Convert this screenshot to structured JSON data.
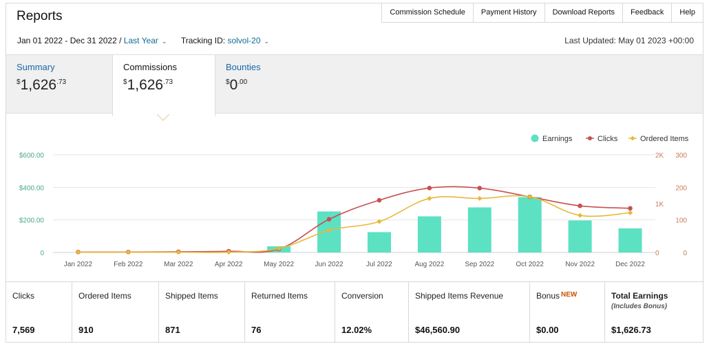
{
  "header": {
    "title": "Reports",
    "nav": [
      "Commission Schedule",
      "Payment History",
      "Download Reports",
      "Feedback",
      "Help"
    ]
  },
  "filters": {
    "date_range": "Jan 01 2022 - Dec 31 2022",
    "separator": "/",
    "period": "Last Year",
    "tracking_label": "Tracking ID:",
    "tracking_id": "solvol-20",
    "last_updated": "Last Updated: May 01 2023 +00:00"
  },
  "tabs": [
    {
      "label": "Summary",
      "currency": "$",
      "whole": "1,626",
      "cents": ".73"
    },
    {
      "label": "Commissions",
      "currency": "$",
      "whole": "1,626",
      "cents": ".73"
    },
    {
      "label": "Bounties",
      "currency": "$",
      "whole": "0",
      "cents": ".00"
    }
  ],
  "chart_data": {
    "type": "bar",
    "legend": [
      "Earnings",
      "Clicks",
      "Ordered Items"
    ],
    "legend_position": "top-right",
    "categories": [
      "Jan 2022",
      "Feb 2022",
      "Mar 2022",
      "Apr 2022",
      "May 2022",
      "Jun 2022",
      "Jul 2022",
      "Aug 2022",
      "Sep 2022",
      "Oct 2022",
      "Nov 2022",
      "Dec 2022"
    ],
    "left_axis": {
      "ticks": [
        "0",
        "$200.00",
        "$400.00",
        "$600.00"
      ],
      "range": [
        0,
        600
      ]
    },
    "right_axis_1": {
      "ticks": [
        "0",
        "1K",
        "2K"
      ],
      "range": [
        0,
        2000
      ]
    },
    "right_axis_2": {
      "ticks": [
        "0",
        "100",
        "200",
        "300"
      ],
      "range": [
        0,
        300
      ]
    },
    "series": [
      {
        "name": "Earnings",
        "type": "bar",
        "axis": "left",
        "color": "#5ce1c3",
        "values": [
          0,
          0,
          0,
          0,
          38,
          252,
          125,
          222,
          277,
          340,
          197,
          148
        ]
      },
      {
        "name": "Clicks",
        "type": "line",
        "axis": "right_1",
        "color": "#c94f4f",
        "values": [
          10,
          10,
          15,
          25,
          70,
          680,
          1070,
          1320,
          1318,
          1140,
          955,
          905
        ]
      },
      {
        "name": "Ordered Items",
        "type": "line",
        "axis": "right_2",
        "color": "#e8b83a",
        "values": [
          1,
          1,
          1,
          1,
          12,
          68,
          95,
          166,
          166,
          171,
          114,
          122
        ]
      }
    ]
  },
  "stats": [
    {
      "label": "Clicks",
      "value": "7,569"
    },
    {
      "label": "Ordered Items",
      "value": "910"
    },
    {
      "label": "Shipped Items",
      "value": "871"
    },
    {
      "label": "Returned Items",
      "value": "76"
    },
    {
      "label": "Conversion",
      "value": "12.02%"
    },
    {
      "label": "Shipped Items Revenue",
      "value": "$46,560.90"
    },
    {
      "label": "Bonus",
      "badge": "NEW",
      "value": "$0.00"
    },
    {
      "label": "Total Earnings",
      "sublabel": "(Includes Bonus)",
      "value": "$1,626.73"
    }
  ]
}
